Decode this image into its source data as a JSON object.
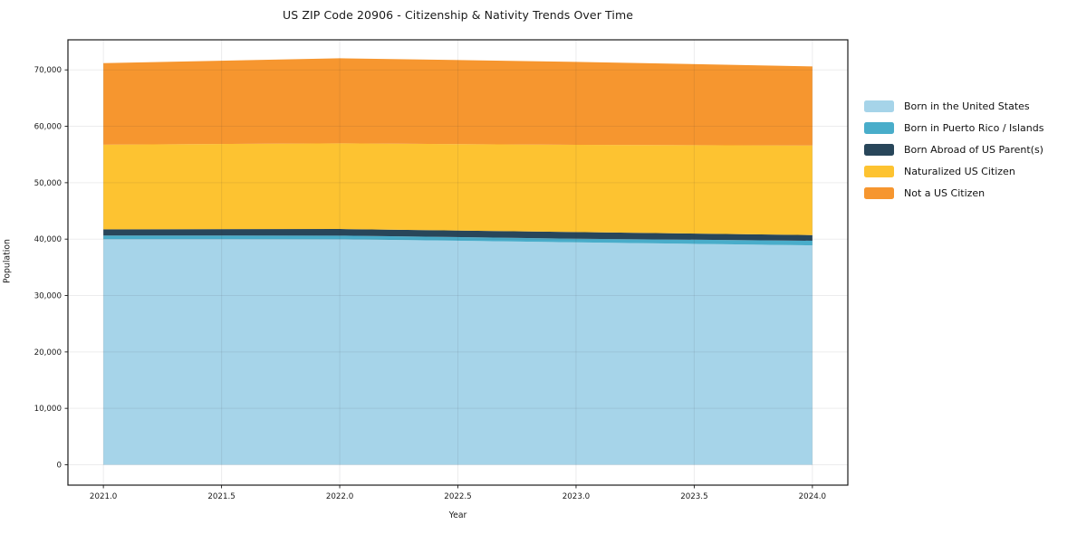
{
  "chart_data": {
    "type": "area",
    "title": "US ZIP Code 20906 - Citizenship & Nativity Trends Over Time",
    "xlabel": "Year",
    "ylabel": "Population",
    "x": [
      2021,
      2022,
      2023,
      2024
    ],
    "series": [
      {
        "name": "Born in the United States",
        "color": "#A6D4E9",
        "values": [
          40000,
          39980,
          39440,
          38900
        ]
      },
      {
        "name": "Born in Puerto Rico / Islands",
        "color": "#49ADCA",
        "values": [
          640,
          640,
          640,
          810
        ]
      },
      {
        "name": "Born Abroad of US Parent(s)",
        "color": "#28465A",
        "values": [
          1100,
          1170,
          1180,
          1010
        ]
      },
      {
        "name": "Naturalized US Citizen",
        "color": "#FDC331",
        "values": [
          15000,
          15190,
          15450,
          15880
        ]
      },
      {
        "name": "Not a US Citizen",
        "color": "#F6962F",
        "values": [
          14450,
          15080,
          14710,
          14020
        ]
      }
    ],
    "stacked": true,
    "xlim": [
      2020.85,
      2024.15
    ],
    "ylim": [
      -3610,
      75330
    ],
    "xticks": [
      2021.0,
      2021.5,
      2022.0,
      2022.5,
      2023.0,
      2023.5,
      2024.0
    ],
    "xtick_labels": [
      "2021.0",
      "2021.5",
      "2022.0",
      "2022.5",
      "2023.0",
      "2023.5",
      "2024.0"
    ],
    "yticks": [
      0,
      10000,
      20000,
      30000,
      40000,
      50000,
      60000,
      70000
    ],
    "ytick_labels": [
      "0",
      "10,000",
      "20,000",
      "30,000",
      "40,000",
      "50,000",
      "60,000",
      "70,000"
    ],
    "grid": true,
    "legend_position": "center right, outside plot",
    "colors": {
      "grid": "rgba(40,40,60,0.09)",
      "spine": "#1a1a1a",
      "tick": "#1a1a1a",
      "tick_label": "#1a1a1a",
      "background": "#ffffff"
    }
  }
}
